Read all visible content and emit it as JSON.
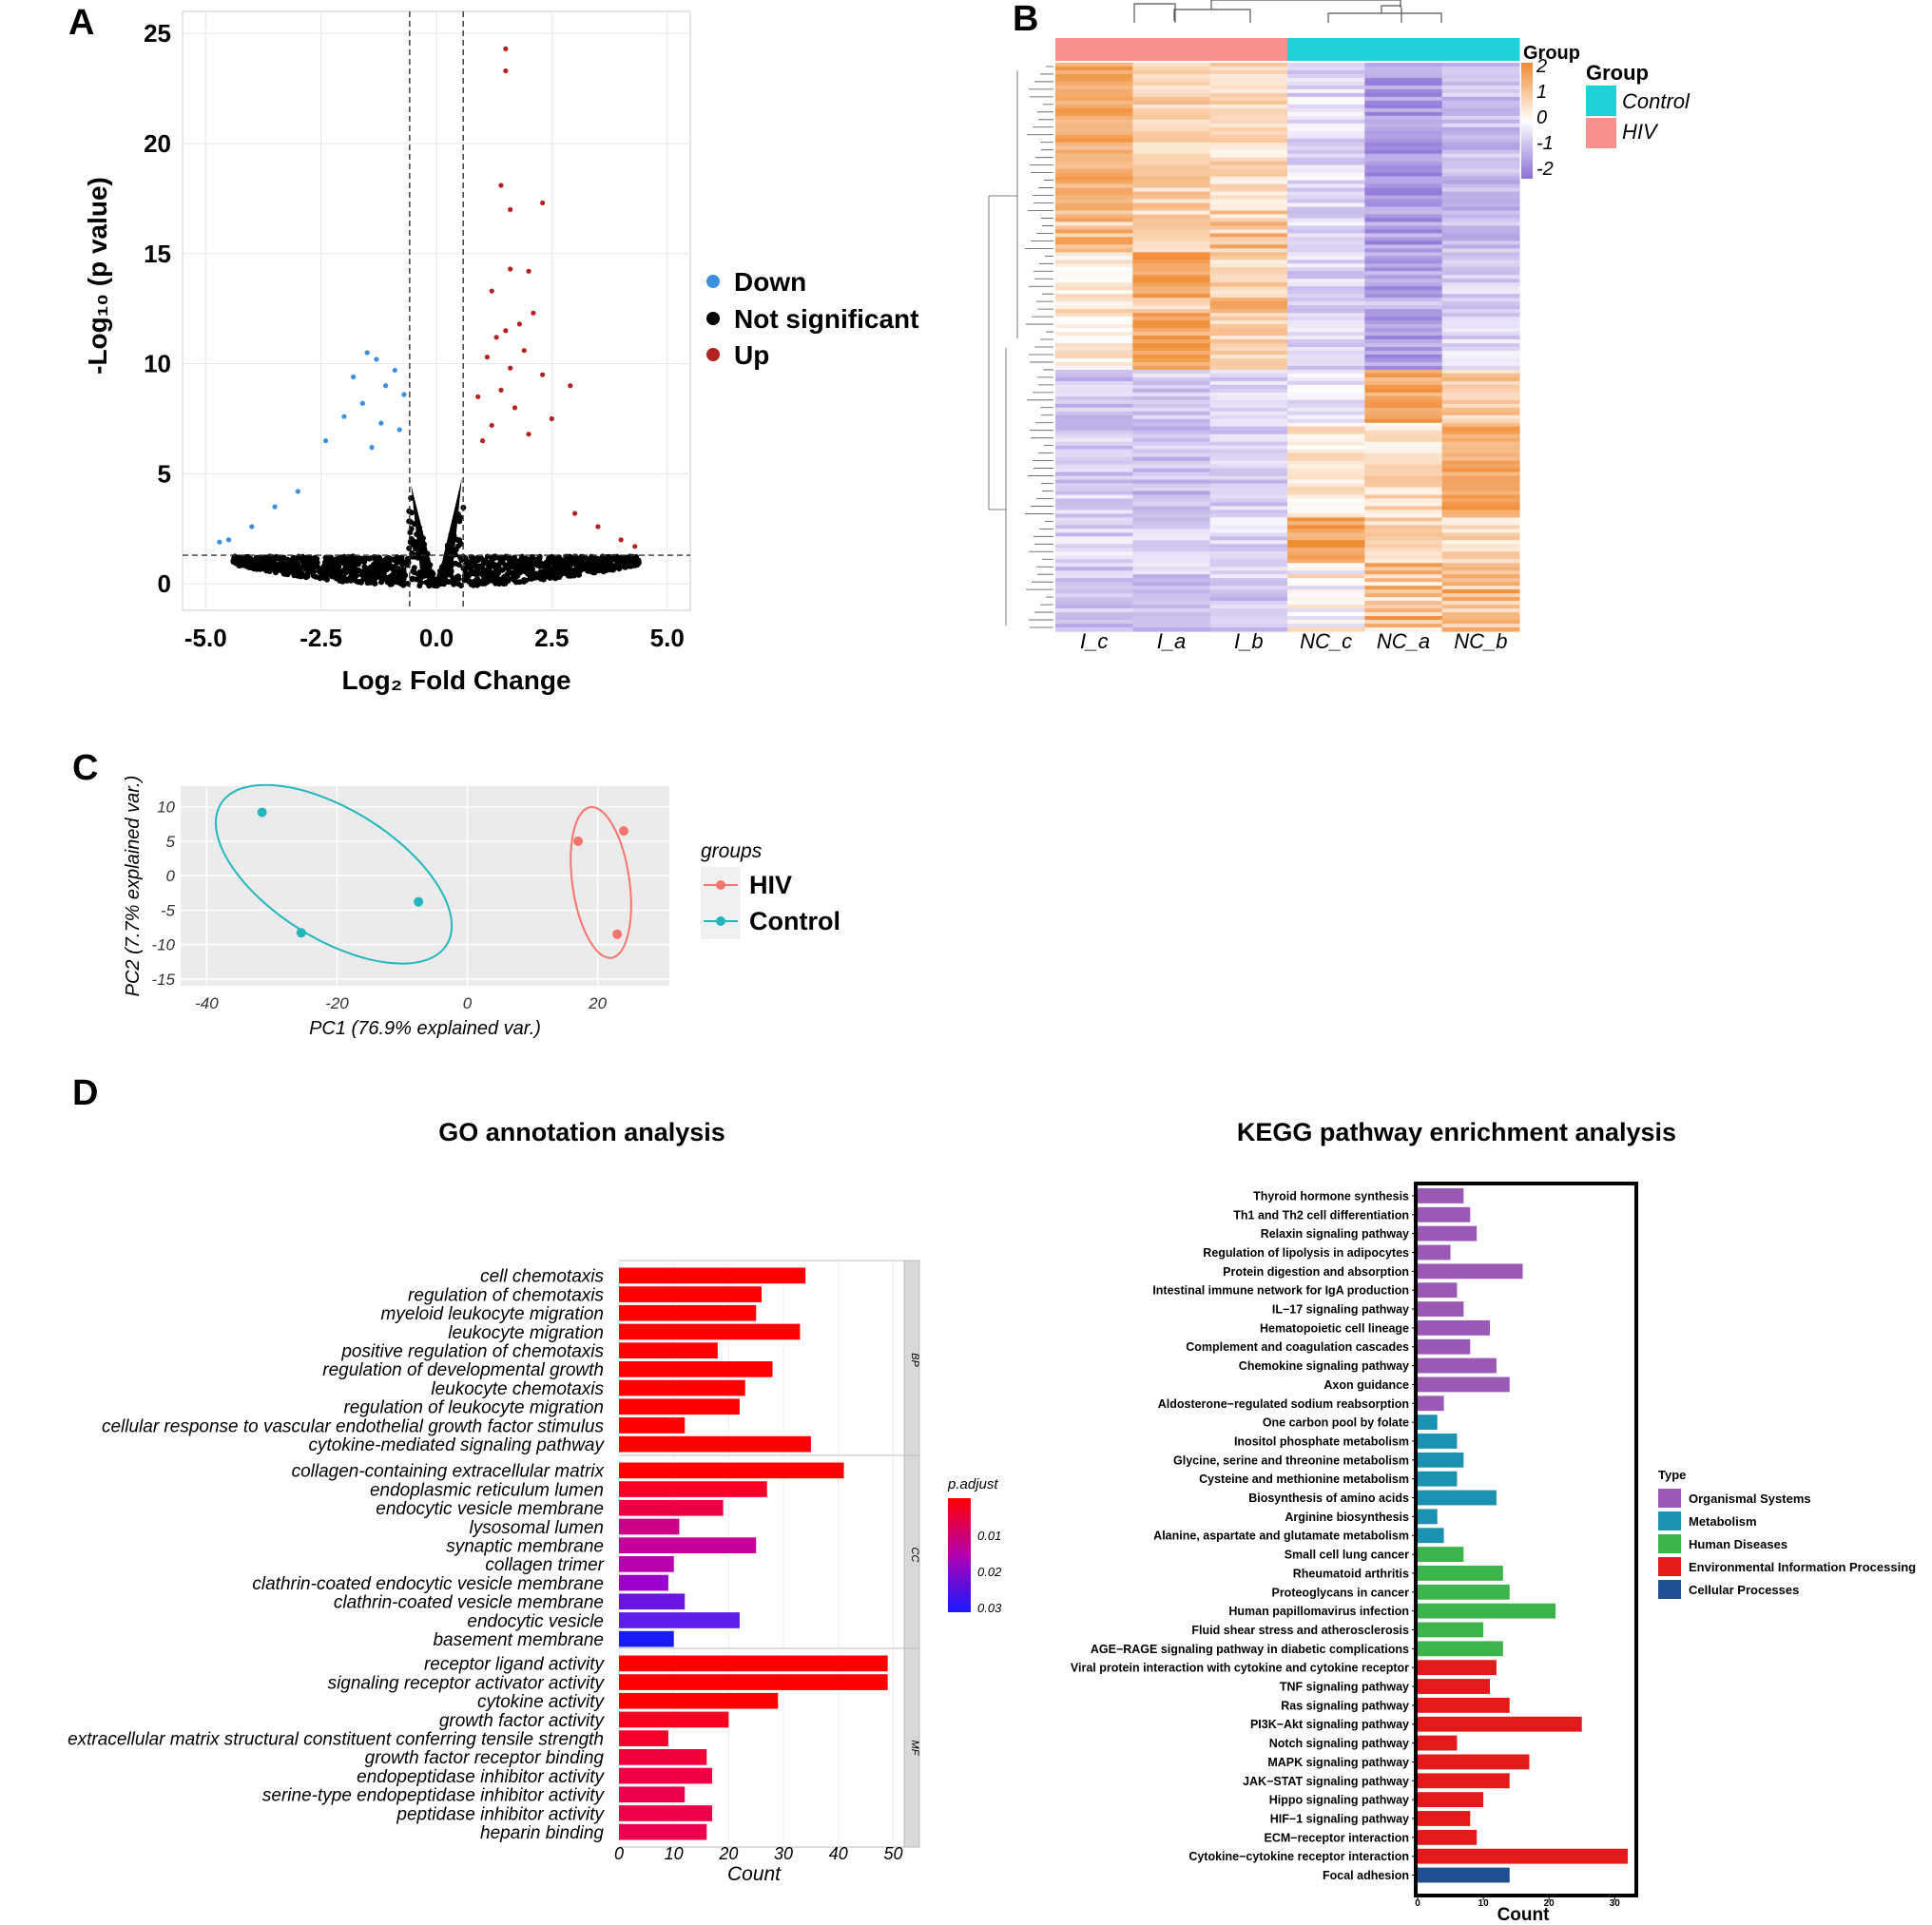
{
  "figure": {
    "panel_labels": [
      "A",
      "B",
      "C",
      "D"
    ]
  },
  "chart_data": [
    {
      "id": "volcano",
      "type": "scatter",
      "panel": "A",
      "xlabel": "Log₂ Fold Change",
      "ylabel": "-Log₁₀ (p value)",
      "xlim": [
        -5.5,
        5.5
      ],
      "ylim": [
        -1.2,
        26
      ],
      "x_ticks": [
        -5.0,
        -2.5,
        0.0,
        2.5,
        5.0
      ],
      "x_tick_labels": [
        "-5.0",
        "-2.5",
        "0.0",
        "2.5",
        "5.0"
      ],
      "y_ticks": [
        0,
        5,
        10,
        15,
        20,
        25
      ],
      "y_tick_labels": [
        "0",
        "5",
        "10",
        "15",
        "20",
        "25"
      ],
      "threshold_fc": 0.58,
      "threshold_p": 1.3,
      "legend": [
        {
          "label": "Down",
          "color": "#3a8fe0"
        },
        {
          "label": "Not significant",
          "color": "#000000"
        },
        {
          "label": "Up",
          "color": "#b22222"
        }
      ],
      "up_points": [
        [
          1.5,
          24.3
        ],
        [
          1.5,
          23.3
        ],
        [
          2.3,
          17.3
        ],
        [
          1.4,
          18.1
        ],
        [
          1.6,
          17.0
        ],
        [
          2.0,
          14.2
        ],
        [
          1.6,
          14.3
        ],
        [
          1.2,
          13.3
        ],
        [
          2.1,
          12.3
        ],
        [
          1.8,
          11.8
        ],
        [
          1.5,
          11.5
        ],
        [
          1.3,
          11.2
        ],
        [
          1.9,
          10.6
        ],
        [
          1.1,
          10.3
        ],
        [
          1.6,
          9.8
        ],
        [
          2.3,
          9.5
        ],
        [
          2.9,
          9.0
        ],
        [
          1.4,
          8.8
        ],
        [
          0.9,
          8.5
        ],
        [
          1.7,
          8.0
        ],
        [
          2.5,
          7.5
        ],
        [
          1.2,
          7.2
        ],
        [
          2.0,
          6.8
        ],
        [
          1.0,
          6.5
        ],
        [
          3.0,
          3.2
        ],
        [
          3.5,
          2.6
        ],
        [
          4.0,
          2.0
        ],
        [
          4.3,
          1.7
        ]
      ],
      "down_points": [
        [
          -1.5,
          10.5
        ],
        [
          -1.3,
          10.2
        ],
        [
          -0.9,
          9.7
        ],
        [
          -1.8,
          9.4
        ],
        [
          -1.1,
          9.0
        ],
        [
          -0.7,
          8.6
        ],
        [
          -1.6,
          8.2
        ],
        [
          -2.0,
          7.6
        ],
        [
          -1.2,
          7.3
        ],
        [
          -0.8,
          7.0
        ],
        [
          -2.4,
          6.5
        ],
        [
          -1.4,
          6.2
        ],
        [
          -3.0,
          4.2
        ],
        [
          -3.5,
          3.5
        ],
        [
          -4.0,
          2.6
        ],
        [
          -4.5,
          2.0
        ],
        [
          -4.7,
          1.9
        ]
      ]
    },
    {
      "id": "heatmap",
      "type": "heatmap",
      "panel": "B",
      "columns": [
        "I_c",
        "I_a",
        "I_b",
        "NC_c",
        "NC_a",
        "NC_b"
      ],
      "column_groups": [
        "HIV",
        "HIV",
        "HIV",
        "Control",
        "Control",
        "Control"
      ],
      "annotation_title": "Group",
      "legend_title": "Group",
      "legend_entries": [
        {
          "label": "Control",
          "color": "#1fd1d8"
        },
        {
          "label": "HIV",
          "color": "#f7918b"
        }
      ],
      "colorscale_title": "Group",
      "colorscale_ticks": [
        "2",
        "1",
        "0",
        "-1",
        "-2"
      ],
      "colorscale_range": [
        -2,
        2
      ],
      "color_high": "#f08a32",
      "color_mid": "#ffffff",
      "color_low": "#8b6fd6"
    },
    {
      "id": "pca",
      "type": "scatter",
      "panel": "C",
      "xlabel": "PC1 (76.9% explained var.)",
      "ylabel": "PC2 (7.7% explained var.)",
      "xlim": [
        -44,
        31
      ],
      "ylim": [
        -16,
        13
      ],
      "x_ticks": [
        -40,
        -20,
        0,
        20
      ],
      "x_tick_labels": [
        "-40",
        "-20",
        "0",
        "20"
      ],
      "y_ticks": [
        10,
        5,
        0,
        -5,
        -10,
        -15
      ],
      "y_tick_labels": [
        "10",
        "5",
        "0",
        "-5",
        "-10",
        "-15"
      ],
      "legend_title": "groups",
      "series": [
        {
          "name": "HIV",
          "color": "#f4756d",
          "points": [
            [
              17,
              5
            ],
            [
              24,
              6.5
            ],
            [
              23,
              -8.5
            ]
          ]
        },
        {
          "name": "Control",
          "color": "#22b7bd",
          "points": [
            [
              -31.5,
              9.2
            ],
            [
              -25.5,
              -8.3
            ],
            [
              -7.5,
              -3.8
            ]
          ]
        }
      ]
    },
    {
      "id": "go",
      "type": "bar",
      "panel": "D",
      "title": "GO annotation analysis",
      "xlabel": "Count",
      "xlim": [
        0,
        52
      ],
      "x_ticks": [
        0,
        10,
        20,
        30,
        40,
        50
      ],
      "x_tick_labels": [
        "0",
        "10",
        "20",
        "30",
        "40",
        "50"
      ],
      "legend_title": "p.adjust",
      "legend_ticks": [
        "0.01",
        "0.02",
        "0.03"
      ],
      "facets": [
        {
          "label": "BP",
          "terms": [
            {
              "term": "cell chemotaxis",
              "count": 34,
              "color": "#ff0000"
            },
            {
              "term": "regulation of chemotaxis",
              "count": 26,
              "color": "#ff0000"
            },
            {
              "term": "myeloid leukocyte migration",
              "count": 25,
              "color": "#ff0000"
            },
            {
              "term": "leukocyte migration",
              "count": 33,
              "color": "#ff0000"
            },
            {
              "term": "positive regulation of chemotaxis",
              "count": 18,
              "color": "#ff0000"
            },
            {
              "term": "regulation of developmental growth",
              "count": 28,
              "color": "#ff0000"
            },
            {
              "term": "leukocyte chemotaxis",
              "count": 23,
              "color": "#ff0000"
            },
            {
              "term": "regulation of leukocyte migration",
              "count": 22,
              "color": "#ff0000"
            },
            {
              "term": "cellular response to vascular endothelial growth factor stimulus",
              "count": 12,
              "color": "#ff0000"
            },
            {
              "term": "cytokine-mediated signaling pathway",
              "count": 35,
              "color": "#ff0000"
            }
          ]
        },
        {
          "label": "CC",
          "terms": [
            {
              "term": "collagen-containing extracellular matrix",
              "count": 41,
              "color": "#ff0000"
            },
            {
              "term": "endoplasmic reticulum lumen",
              "count": 27,
              "color": "#f8002a"
            },
            {
              "term": "endocytic vesicle membrane",
              "count": 19,
              "color": "#ec0045"
            },
            {
              "term": "lysosomal lumen",
              "count": 11,
              "color": "#cc0088"
            },
            {
              "term": "synaptic membrane",
              "count": 25,
              "color": "#c4009a"
            },
            {
              "term": "collagen trimer",
              "count": 10,
              "color": "#b800ac"
            },
            {
              "term": "clathrin-coated endocytic vesicle membrane",
              "count": 9,
              "color": "#9a00c9"
            },
            {
              "term": "clathrin-coated vesicle membrane",
              "count": 12,
              "color": "#6a14e0"
            },
            {
              "term": "endocytic vesicle",
              "count": 22,
              "color": "#5a1ee8"
            },
            {
              "term": "basement membrane",
              "count": 10,
              "color": "#1a1af5"
            }
          ]
        },
        {
          "label": "MF",
          "terms": [
            {
              "term": "receptor ligand activity",
              "count": 49,
              "color": "#ff0000"
            },
            {
              "term": "signaling receptor activator activity",
              "count": 49,
              "color": "#ff0000"
            },
            {
              "term": "cytokine activity",
              "count": 29,
              "color": "#ff0000"
            },
            {
              "term": "growth factor activity",
              "count": 20,
              "color": "#f80020"
            },
            {
              "term": "extracellular matrix structural constituent conferring tensile strength",
              "count": 9,
              "color": "#f5002a"
            },
            {
              "term": "growth factor receptor binding",
              "count": 16,
              "color": "#f2003a"
            },
            {
              "term": "endopeptidase inhibitor activity",
              "count": 17,
              "color": "#ef0044"
            },
            {
              "term": "serine-type endopeptidase inhibitor activity",
              "count": 12,
              "color": "#ed004c"
            },
            {
              "term": "peptidase inhibitor activity",
              "count": 17,
              "color": "#ee0048"
            },
            {
              "term": "heparin binding",
              "count": 16,
              "color": "#ec0050"
            }
          ]
        }
      ]
    },
    {
      "id": "kegg",
      "type": "bar",
      "panel": "D",
      "title": "KEGG pathway enrichment analysis",
      "xlabel": "Count",
      "xlim": [
        0,
        33
      ],
      "x_ticks": [
        0,
        10,
        20,
        30
      ],
      "x_tick_labels": [
        "0",
        "10",
        "20",
        "30"
      ],
      "legend_title": "Type",
      "types": [
        {
          "name": "Organismal Systems",
          "color": "#9b59b6"
        },
        {
          "name": "Metabolism",
          "color": "#1a92b0"
        },
        {
          "name": "Human Diseases",
          "color": "#3cb44b"
        },
        {
          "name": "Environmental Information Processing",
          "color": "#e31a1c"
        },
        {
          "name": "Cellular Processes",
          "color": "#1f4e91"
        }
      ],
      "pathways": [
        {
          "name": "Thyroid hormone synthesis",
          "count": 7,
          "type": 0
        },
        {
          "name": "Th1 and Th2 cell differentiation",
          "count": 8,
          "type": 0
        },
        {
          "name": "Relaxin signaling pathway",
          "count": 9,
          "type": 0
        },
        {
          "name": "Regulation of lipolysis in adipocytes",
          "count": 5,
          "type": 0
        },
        {
          "name": "Protein digestion and absorption",
          "count": 16,
          "type": 0
        },
        {
          "name": "Intestinal immune network for IgA production",
          "count": 6,
          "type": 0
        },
        {
          "name": "IL−17 signaling pathway",
          "count": 7,
          "type": 0
        },
        {
          "name": "Hematopoietic cell lineage",
          "count": 11,
          "type": 0
        },
        {
          "name": "Complement and coagulation cascades",
          "count": 8,
          "type": 0
        },
        {
          "name": "Chemokine signaling pathway",
          "count": 12,
          "type": 0
        },
        {
          "name": "Axon guidance",
          "count": 14,
          "type": 0
        },
        {
          "name": "Aldosterone−regulated sodium reabsorption",
          "count": 4,
          "type": 0
        },
        {
          "name": "One carbon pool by folate",
          "count": 3,
          "type": 1
        },
        {
          "name": "Inositol phosphate metabolism",
          "count": 6,
          "type": 1
        },
        {
          "name": "Glycine, serine and threonine metabolism",
          "count": 7,
          "type": 1
        },
        {
          "name": "Cysteine and methionine metabolism",
          "count": 6,
          "type": 1
        },
        {
          "name": "Biosynthesis of amino acids",
          "count": 12,
          "type": 1
        },
        {
          "name": "Arginine biosynthesis",
          "count": 3,
          "type": 1
        },
        {
          "name": "Alanine, aspartate and glutamate metabolism",
          "count": 4,
          "type": 1
        },
        {
          "name": "Small cell lung cancer",
          "count": 7,
          "type": 2
        },
        {
          "name": "Rheumatoid arthritis",
          "count": 13,
          "type": 2
        },
        {
          "name": "Proteoglycans in cancer",
          "count": 14,
          "type": 2
        },
        {
          "name": "Human papillomavirus infection",
          "count": 21,
          "type": 2
        },
        {
          "name": "Fluid shear stress and atherosclerosis",
          "count": 10,
          "type": 2
        },
        {
          "name": "AGE−RAGE signaling pathway in diabetic complications",
          "count": 13,
          "type": 2
        },
        {
          "name": "Viral protein interaction with cytokine and cytokine receptor",
          "count": 12,
          "type": 3
        },
        {
          "name": "TNF signaling pathway",
          "count": 11,
          "type": 3
        },
        {
          "name": "Ras signaling pathway",
          "count": 14,
          "type": 3
        },
        {
          "name": "PI3K−Akt signaling pathway",
          "count": 25,
          "type": 3
        },
        {
          "name": "Notch signaling pathway",
          "count": 6,
          "type": 3
        },
        {
          "name": "MAPK signaling pathway",
          "count": 17,
          "type": 3
        },
        {
          "name": "JAK−STAT signaling pathway",
          "count": 14,
          "type": 3
        },
        {
          "name": "Hippo signaling pathway",
          "count": 10,
          "type": 3
        },
        {
          "name": "HIF−1 signaling pathway",
          "count": 8,
          "type": 3
        },
        {
          "name": "ECM−receptor interaction",
          "count": 9,
          "type": 3
        },
        {
          "name": "Cytokine−cytokine receptor interaction",
          "count": 32,
          "type": 3
        },
        {
          "name": "Focal adhesion",
          "count": 14,
          "type": 4
        }
      ]
    }
  ]
}
